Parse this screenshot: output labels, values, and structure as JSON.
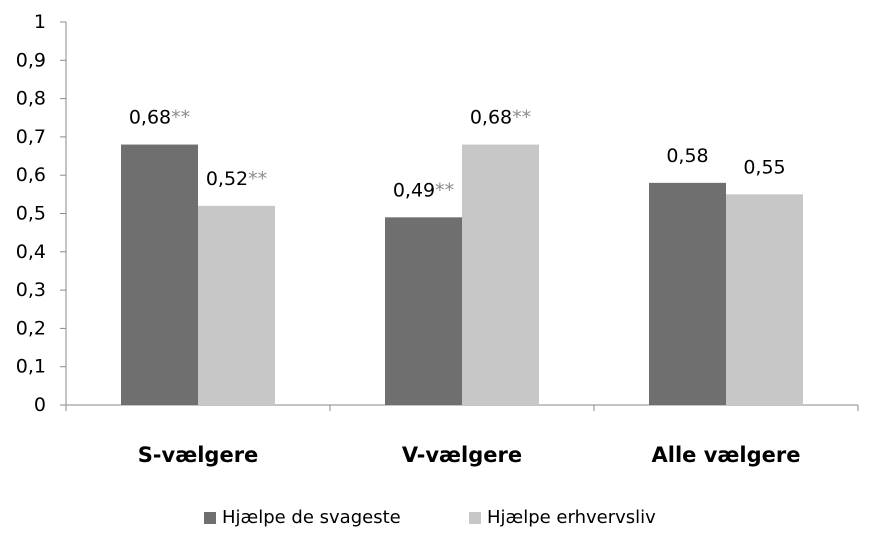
{
  "chart_data": {
    "type": "bar",
    "title": "",
    "xlabel": "",
    "ylabel": "",
    "categories": [
      "S-vælgere",
      "V-vælgere",
      "Alle vælgere"
    ],
    "ylim": [
      0,
      1
    ],
    "y_ticks": [
      "0",
      "0,1",
      "0,2",
      "0,3",
      "0,4",
      "0,5",
      "0,6",
      "0,7",
      "0,8",
      "0,9",
      "1"
    ],
    "grid": false,
    "legend_position": "bottom",
    "series": [
      {
        "name": "Hjælpe de svageste",
        "color": "#6f6f6f",
        "values": [
          0.68,
          0.49,
          0.58
        ],
        "labels": [
          "0,68",
          "0,49",
          "0,58"
        ],
        "significance": [
          "**",
          "**",
          ""
        ]
      },
      {
        "name": "Hjælpe erhvervsliv",
        "color": "#c7c7c7",
        "values": [
          0.52,
          0.68,
          0.55
        ],
        "labels": [
          "0,52",
          "0,68",
          "0,55"
        ],
        "significance": [
          "**",
          "**",
          ""
        ]
      }
    ]
  }
}
